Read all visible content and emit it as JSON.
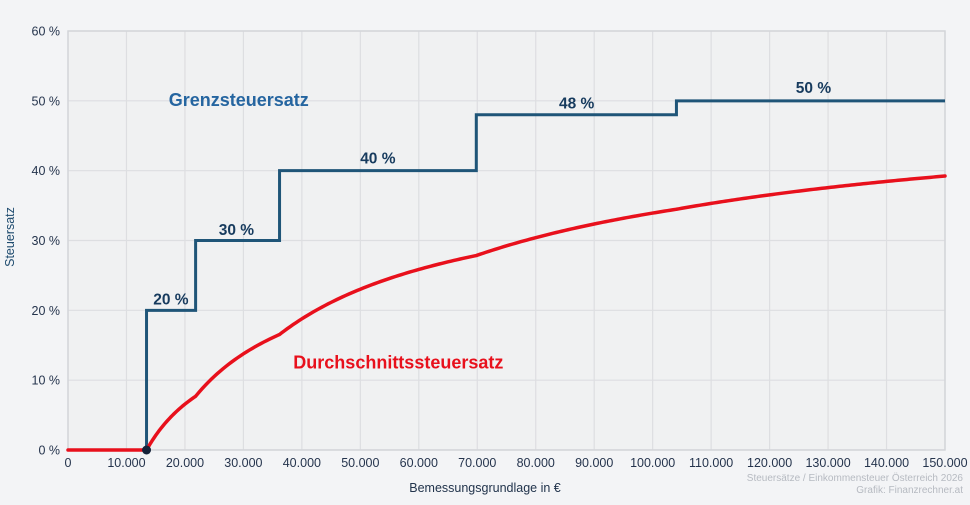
{
  "chart_data": {
    "type": "line",
    "title": "",
    "xlabel": "Bemessungsgrundlage in €",
    "ylabel": "Steuersatz",
    "xlim": [
      0,
      150000
    ],
    "ylim": [
      0,
      60
    ],
    "grid": true,
    "legend_position": "inline-annotations",
    "x_ticks": [
      {
        "v": 0,
        "label": "0"
      },
      {
        "v": 10000,
        "label": "10.000"
      },
      {
        "v": 20000,
        "label": "20.000"
      },
      {
        "v": 30000,
        "label": "30.000"
      },
      {
        "v": 40000,
        "label": "40.000"
      },
      {
        "v": 50000,
        "label": "50.000"
      },
      {
        "v": 60000,
        "label": "60.000"
      },
      {
        "v": 70000,
        "label": "70.000"
      },
      {
        "v": 80000,
        "label": "80.000"
      },
      {
        "v": 90000,
        "label": "90.000"
      },
      {
        "v": 100000,
        "label": "100.000"
      },
      {
        "v": 110000,
        "label": "110.000"
      },
      {
        "v": 120000,
        "label": "120.000"
      },
      {
        "v": 130000,
        "label": "130.000"
      },
      {
        "v": 140000,
        "label": "140.000"
      },
      {
        "v": 150000,
        "label": "150.000"
      }
    ],
    "y_ticks": [
      {
        "v": 0,
        "label": "0 %"
      },
      {
        "v": 10,
        "label": "10 %"
      },
      {
        "v": 20,
        "label": "20 %"
      },
      {
        "v": 30,
        "label": "30 %"
      },
      {
        "v": 40,
        "label": "40 %"
      },
      {
        "v": 50,
        "label": "50 %"
      },
      {
        "v": 60,
        "label": "60 %"
      }
    ],
    "series": [
      {
        "name": "Grenzsteuersatz",
        "style": "step",
        "color": "#1f5578",
        "width": 3,
        "points": [
          [
            13432,
            0
          ],
          [
            13432,
            20
          ],
          [
            21826,
            20
          ],
          [
            21826,
            30
          ],
          [
            36182,
            30
          ],
          [
            36182,
            40
          ],
          [
            69834,
            40
          ],
          [
            69834,
            48
          ],
          [
            104065,
            48
          ],
          [
            104065,
            50
          ],
          [
            150000,
            50
          ]
        ]
      },
      {
        "name": "Durchschnittssteuersatz",
        "style": "curve",
        "color": "#e8101c",
        "width": 3.5,
        "derived": "average_tax_rate_from_brackets",
        "x_range": [
          0,
          150000
        ]
      }
    ],
    "tax_brackets": [
      {
        "up_to": 13432,
        "rate_pct": 0
      },
      {
        "up_to": 21826,
        "rate_pct": 20
      },
      {
        "up_to": 36182,
        "rate_pct": 30
      },
      {
        "up_to": 69834,
        "rate_pct": 40
      },
      {
        "up_to": 104065,
        "rate_pct": 48
      },
      {
        "up_to": 150000,
        "rate_pct": 50
      }
    ],
    "start_marker": {
      "x": 13432,
      "y": 0,
      "color": "#16233a",
      "radius": 4.5
    },
    "annotations": [
      {
        "id": "label-20",
        "text": "20 %",
        "x": 17600,
        "y": 21.6,
        "size": 15.5,
        "weight": "bold",
        "color": "#173b5e"
      },
      {
        "id": "label-30",
        "text": "30 %",
        "x": 28800,
        "y": 31.6,
        "size": 15.5,
        "weight": "bold",
        "color": "#173b5e"
      },
      {
        "id": "label-40",
        "text": "40 %",
        "x": 53000,
        "y": 41.8,
        "size": 15.5,
        "weight": "bold",
        "color": "#173b5e"
      },
      {
        "id": "label-48",
        "text": "48 %",
        "x": 87000,
        "y": 49.7,
        "size": 15.5,
        "weight": "bold",
        "color": "#173b5e"
      },
      {
        "id": "label-50",
        "text": "50 %",
        "x": 127500,
        "y": 51.9,
        "size": 15.5,
        "weight": "bold",
        "color": "#173b5e"
      },
      {
        "id": "series-label-marginal",
        "text": "Grenzsteuersatz",
        "x": 29200,
        "y": 50.2,
        "size": 18,
        "weight": "bold",
        "color": "#2565a0"
      },
      {
        "id": "series-label-average",
        "text": "Durchschnittssteuersatz",
        "x": 56500,
        "y": 12.6,
        "size": 18,
        "weight": "bold",
        "color": "#e8101c"
      }
    ],
    "colors": {
      "page_bg": "#f3f4f6",
      "plot_bg": "#f0f1f2",
      "grid": "#dddee1",
      "border": "#d3d5d9",
      "tick_text": "#25344d"
    }
  },
  "attribution": {
    "line1": "Steuersätze / Einkommensteuer Österreich 2026",
    "line2": "Grafik: Finanzrechner.at"
  }
}
